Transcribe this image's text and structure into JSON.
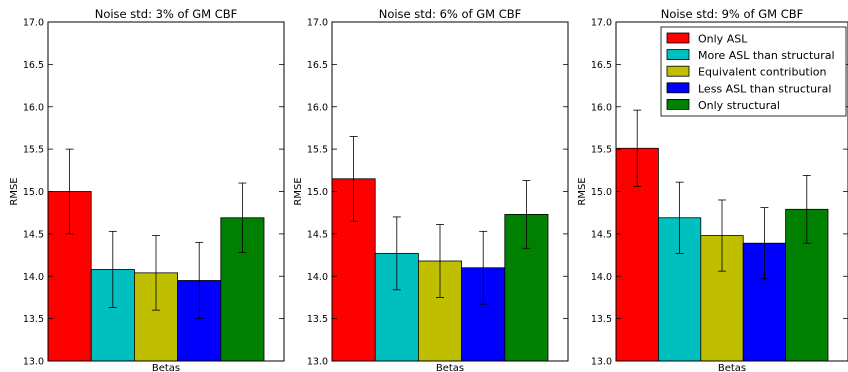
{
  "chart_data": [
    {
      "type": "bar",
      "title": "Noise std: 3% of GM CBF",
      "xlabel": "Betas",
      "ylabel": "RMSE",
      "ylim": [
        13.0,
        17.0
      ],
      "yticks": [
        "13.0",
        "13.5",
        "14.0",
        "14.5",
        "15.0",
        "15.5",
        "16.0",
        "16.5",
        "17.0"
      ],
      "bars": [
        {
          "category": "Only ASL",
          "value": 15.0,
          "err": 0.5,
          "color": "#ff0000"
        },
        {
          "category": "More ASL than structural",
          "value": 14.08,
          "err": 0.45,
          "color": "#00bfbf"
        },
        {
          "category": "Equivalent contribution",
          "value": 14.04,
          "err": 0.44,
          "color": "#bfbf00"
        },
        {
          "category": "Less ASL than structural",
          "value": 13.95,
          "err": 0.45,
          "color": "#0000ff"
        },
        {
          "category": "Only structural",
          "value": 14.69,
          "err": 0.41,
          "color": "#008000"
        }
      ],
      "grid": false,
      "legend": null
    },
    {
      "type": "bar",
      "title": "Noise std: 6% of GM CBF",
      "xlabel": "Betas",
      "ylabel": "RMSE",
      "ylim": [
        13.0,
        17.0
      ],
      "yticks": [
        "13.0",
        "13.5",
        "14.0",
        "14.5",
        "15.0",
        "15.5",
        "16.0",
        "16.5",
        "17.0"
      ],
      "bars": [
        {
          "category": "Only ASL",
          "value": 15.15,
          "err": 0.5,
          "color": "#ff0000"
        },
        {
          "category": "More ASL than structural",
          "value": 14.27,
          "err": 0.43,
          "color": "#00bfbf"
        },
        {
          "category": "Equivalent contribution",
          "value": 14.18,
          "err": 0.43,
          "color": "#bfbf00"
        },
        {
          "category": "Less ASL than structural",
          "value": 14.1,
          "err": 0.43,
          "color": "#0000ff"
        },
        {
          "category": "Only structural",
          "value": 14.73,
          "err": 0.4,
          "color": "#008000"
        }
      ],
      "grid": false,
      "legend": null
    },
    {
      "type": "bar",
      "title": "Noise std: 9% of GM CBF",
      "xlabel": "Betas",
      "ylabel": "RMSE",
      "ylim": [
        13.0,
        17.0
      ],
      "yticks": [
        "13.0",
        "13.5",
        "14.0",
        "14.5",
        "15.0",
        "15.5",
        "16.0",
        "16.5",
        "17.0"
      ],
      "bars": [
        {
          "category": "Only ASL",
          "value": 15.51,
          "err": 0.45,
          "color": "#ff0000"
        },
        {
          "category": "More ASL than structural",
          "value": 14.69,
          "err": 0.42,
          "color": "#00bfbf"
        },
        {
          "category": "Equivalent contribution",
          "value": 14.48,
          "err": 0.42,
          "color": "#bfbf00"
        },
        {
          "category": "Less ASL than structural",
          "value": 14.39,
          "err": 0.42,
          "color": "#0000ff"
        },
        {
          "category": "Only structural",
          "value": 14.79,
          "err": 0.4,
          "color": "#008000"
        }
      ],
      "grid": false,
      "legend": "top-right"
    }
  ],
  "legend_entries": [
    {
      "label": "Only ASL",
      "color": "#ff0000"
    },
    {
      "label": "More ASL than structural",
      "color": "#00bfbf"
    },
    {
      "label": "Equivalent contribution",
      "color": "#bfbf00"
    },
    {
      "label": "Less ASL than structural",
      "color": "#0000ff"
    },
    {
      "label": "Only structural",
      "color": "#008000"
    }
  ]
}
